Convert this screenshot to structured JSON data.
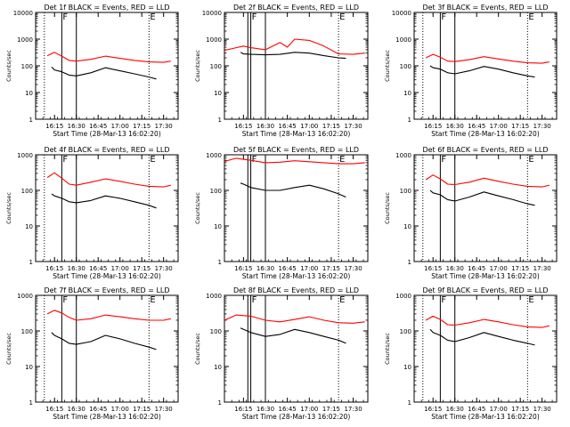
{
  "figure": {
    "xlabel": "Start Time (28-Mar-13 16:02:20)",
    "ylabel": "Counts/sec",
    "colors": {
      "events": "#000000",
      "lld": "#ff0000"
    }
  },
  "chart_data": [
    {
      "type": "line",
      "title": "Det 1f BLACK = Events, RED = LLD",
      "xlabel": "Start Time (28-Mar-13 16:02:20)",
      "ylabel": "Counts/sec",
      "x_ticks": [
        "16:15",
        "16:30",
        "16:45",
        "17:00",
        "17:15",
        "17:30"
      ],
      "y_ticks": [
        "1",
        "10",
        "100",
        "1000",
        "10000"
      ],
      "yscale": "log",
      "ylim": [
        1,
        10000
      ],
      "xlim": [
        "16:02",
        "17:40"
      ],
      "markers": [
        {
          "label": "F",
          "time": "16:20",
          "style": "solid"
        },
        {
          "label": "E",
          "time": "17:20",
          "style": "dotted"
        }
      ],
      "vlines": [
        {
          "time": "16:08",
          "style": "dotted"
        },
        {
          "time": "16:30",
          "style": "solid"
        }
      ],
      "series": [
        {
          "color": "#ff0000",
          "x": [
            "16:10",
            "16:15",
            "16:20",
            "16:25",
            "16:30",
            "16:40",
            "16:50",
            "17:00",
            "17:10",
            "17:20",
            "17:30",
            "17:35"
          ],
          "y": [
            240,
            320,
            230,
            160,
            150,
            175,
            230,
            190,
            160,
            140,
            135,
            150
          ]
        },
        {
          "color": "#000000",
          "x": [
            "16:13",
            "16:15",
            "16:20",
            "16:25",
            "16:30",
            "16:40",
            "16:50",
            "17:00",
            "17:10",
            "17:20",
            "17:25"
          ],
          "y": [
            90,
            70,
            60,
            45,
            42,
            55,
            85,
            65,
            50,
            38,
            32
          ]
        }
      ]
    },
    {
      "type": "line",
      "title": "Det 2f BLACK = Events, RED = LLD",
      "xlabel": "Start Time (28-Mar-13 16:02:20)",
      "ylabel": "Counts/sec",
      "x_ticks": [
        "16:15",
        "16:30",
        "16:45",
        "17:00",
        "17:15",
        "17:30"
      ],
      "y_ticks": [
        "1",
        "10",
        "100",
        "1000",
        "10000"
      ],
      "yscale": "log",
      "ylim": [
        1,
        10000
      ],
      "xlim": [
        "16:02",
        "17:40"
      ],
      "markers": [
        {
          "label": "F",
          "time": "16:20",
          "style": "solid"
        },
        {
          "label": "E",
          "time": "17:20",
          "style": "dotted"
        }
      ],
      "vlines": [
        {
          "time": "16:18",
          "style": "solid"
        },
        {
          "time": "16:30",
          "style": "solid"
        }
      ],
      "series": [
        {
          "color": "#ff0000",
          "x": [
            "16:02",
            "16:10",
            "16:15",
            "16:20",
            "16:30",
            "16:40",
            "16:45",
            "16:50",
            "17:00",
            "17:10",
            "17:20",
            "17:30",
            "17:38"
          ],
          "y": [
            380,
            480,
            550,
            480,
            400,
            750,
            500,
            1000,
            900,
            550,
            280,
            270,
            300
          ]
        },
        {
          "color": "#000000",
          "x": [
            "16:13",
            "16:15",
            "16:20",
            "16:30",
            "16:40",
            "16:50",
            "17:00",
            "17:10",
            "17:20",
            "17:25"
          ],
          "y": [
            320,
            280,
            270,
            260,
            270,
            320,
            300,
            240,
            200,
            190
          ]
        }
      ]
    },
    {
      "type": "line",
      "title": "Det 3f BLACK = Events, RED = LLD",
      "xlabel": "Start Time (28-Mar-13 16:02:20)",
      "ylabel": "Counts/sec",
      "x_ticks": [
        "16:15",
        "16:30",
        "16:45",
        "17:00",
        "17:15",
        "17:30"
      ],
      "y_ticks": [
        "1",
        "10",
        "100",
        "1000",
        "10000"
      ],
      "yscale": "log",
      "ylim": [
        1,
        10000
      ],
      "xlim": [
        "16:02",
        "17:40"
      ],
      "markers": [
        {
          "label": "F",
          "time": "16:20",
          "style": "solid"
        },
        {
          "label": "E",
          "time": "17:20",
          "style": "dotted"
        }
      ],
      "vlines": [
        {
          "time": "16:08",
          "style": "dotted"
        },
        {
          "time": "16:30",
          "style": "solid"
        }
      ],
      "series": [
        {
          "color": "#ff0000",
          "x": [
            "16:10",
            "16:15",
            "16:20",
            "16:25",
            "16:30",
            "16:40",
            "16:50",
            "17:00",
            "17:10",
            "17:20",
            "17:30",
            "17:35"
          ],
          "y": [
            200,
            270,
            210,
            150,
            145,
            170,
            220,
            180,
            150,
            130,
            125,
            140
          ]
        },
        {
          "color": "#000000",
          "x": [
            "16:13",
            "16:15",
            "16:20",
            "16:25",
            "16:30",
            "16:40",
            "16:50",
            "17:00",
            "17:10",
            "17:20",
            "17:25"
          ],
          "y": [
            100,
            85,
            75,
            55,
            50,
            65,
            95,
            75,
            55,
            42,
            38
          ]
        }
      ]
    },
    {
      "type": "line",
      "title": "Det 4f BLACK = Events, RED = LLD",
      "xlabel": "Start Time (28-Mar-13 16:02:20)",
      "ylabel": "Counts/sec",
      "x_ticks": [
        "16:15",
        "16:30",
        "16:45",
        "17:00",
        "17:15",
        "17:30"
      ],
      "y_ticks": [
        "1",
        "10",
        "100",
        "1000"
      ],
      "yscale": "log",
      "ylim": [
        1,
        1000
      ],
      "xlim": [
        "16:02",
        "17:40"
      ],
      "markers": [
        {
          "label": "F",
          "time": "16:20",
          "style": "solid"
        },
        {
          "label": "E",
          "time": "17:20",
          "style": "dotted"
        }
      ],
      "vlines": [
        {
          "time": "16:08",
          "style": "dotted"
        },
        {
          "time": "16:30",
          "style": "solid"
        }
      ],
      "series": [
        {
          "color": "#ff0000",
          "x": [
            "16:10",
            "16:15",
            "16:20",
            "16:25",
            "16:30",
            "16:40",
            "16:50",
            "17:00",
            "17:10",
            "17:20",
            "17:30",
            "17:35"
          ],
          "y": [
            230,
            310,
            220,
            150,
            140,
            170,
            210,
            180,
            150,
            130,
            125,
            140
          ]
        },
        {
          "color": "#000000",
          "x": [
            "16:13",
            "16:15",
            "16:20",
            "16:25",
            "16:30",
            "16:40",
            "16:50",
            "17:00",
            "17:10",
            "17:20",
            "17:25"
          ],
          "y": [
            80,
            70,
            60,
            48,
            45,
            52,
            70,
            60,
            48,
            38,
            32
          ]
        }
      ]
    },
    {
      "type": "line",
      "title": "Det 5f BLACK = Events, RED = LLD",
      "xlabel": "Start Time (28-Mar-13 16:02:20)",
      "ylabel": "Counts/sec",
      "x_ticks": [
        "16:15",
        "16:30",
        "16:45",
        "17:00",
        "17:15",
        "17:30"
      ],
      "y_ticks": [
        "1",
        "10",
        "100",
        "1000"
      ],
      "yscale": "log",
      "ylim": [
        1,
        1000
      ],
      "xlim": [
        "16:02",
        "17:40"
      ],
      "markers": [
        {
          "label": "F",
          "time": "16:20",
          "style": "solid"
        },
        {
          "label": "E",
          "time": "17:20",
          "style": "dotted"
        }
      ],
      "vlines": [
        {
          "time": "16:18",
          "style": "solid"
        },
        {
          "time": "16:30",
          "style": "solid"
        }
      ],
      "series": [
        {
          "color": "#ff0000",
          "x": [
            "16:02",
            "16:10",
            "16:20",
            "16:30",
            "16:40",
            "16:50",
            "17:00",
            "17:10",
            "17:20",
            "17:30",
            "17:38"
          ],
          "y": [
            650,
            800,
            700,
            600,
            620,
            680,
            640,
            600,
            560,
            560,
            600
          ]
        },
        {
          "color": "#000000",
          "x": [
            "16:13",
            "16:15",
            "16:20",
            "16:30",
            "16:40",
            "16:50",
            "17:00",
            "17:10",
            "17:20",
            "17:25"
          ],
          "y": [
            160,
            150,
            120,
            100,
            100,
            120,
            140,
            110,
            80,
            65
          ]
        }
      ]
    },
    {
      "type": "line",
      "title": "Det 6f BLACK = Events, RED = LLD",
      "xlabel": "Start Time (28-Mar-13 16:02:20)",
      "ylabel": "Counts/sec",
      "x_ticks": [
        "16:15",
        "16:30",
        "16:45",
        "17:00",
        "17:15",
        "17:30"
      ],
      "y_ticks": [
        "1",
        "10",
        "100",
        "1000"
      ],
      "yscale": "log",
      "ylim": [
        1,
        1000
      ],
      "xlim": [
        "16:02",
        "17:40"
      ],
      "markers": [
        {
          "label": "F",
          "time": "16:20",
          "style": "solid"
        },
        {
          "label": "E",
          "time": "17:20",
          "style": "dotted"
        }
      ],
      "vlines": [
        {
          "time": "16:08",
          "style": "dotted"
        },
        {
          "time": "16:30",
          "style": "solid"
        }
      ],
      "series": [
        {
          "color": "#ff0000",
          "x": [
            "16:10",
            "16:15",
            "16:20",
            "16:25",
            "16:30",
            "16:40",
            "16:50",
            "17:00",
            "17:10",
            "17:20",
            "17:30",
            "17:35"
          ],
          "y": [
            200,
            270,
            210,
            150,
            145,
            170,
            220,
            180,
            150,
            130,
            125,
            140
          ]
        },
        {
          "color": "#000000",
          "x": [
            "16:13",
            "16:15",
            "16:20",
            "16:25",
            "16:30",
            "16:40",
            "16:50",
            "17:00",
            "17:10",
            "17:20",
            "17:25"
          ],
          "y": [
            100,
            85,
            75,
            55,
            50,
            65,
            90,
            70,
            55,
            42,
            38
          ]
        }
      ]
    },
    {
      "type": "line",
      "title": "Det 7f BLACK = Events, RED = LLD",
      "xlabel": "Start Time (28-Mar-13 16:02:20)",
      "ylabel": "Counts/sec",
      "x_ticks": [
        "16:15",
        "16:30",
        "16:45",
        "17:00",
        "17:15",
        "17:30"
      ],
      "y_ticks": [
        "1",
        "10",
        "100",
        "1000"
      ],
      "yscale": "log",
      "ylim": [
        1,
        1000
      ],
      "xlim": [
        "16:02",
        "17:40"
      ],
      "markers": [
        {
          "label": "F",
          "time": "16:20",
          "style": "solid"
        },
        {
          "label": "E",
          "time": "17:20",
          "style": "dotted"
        }
      ],
      "vlines": [
        {
          "time": "16:08",
          "style": "dotted"
        },
        {
          "time": "16:30",
          "style": "solid"
        }
      ],
      "series": [
        {
          "color": "#ff0000",
          "x": [
            "16:10",
            "16:15",
            "16:20",
            "16:25",
            "16:30",
            "16:40",
            "16:50",
            "17:00",
            "17:10",
            "17:20",
            "17:30",
            "17:35"
          ],
          "y": [
            300,
            380,
            320,
            240,
            200,
            220,
            280,
            250,
            220,
            200,
            200,
            220
          ]
        },
        {
          "color": "#000000",
          "x": [
            "16:13",
            "16:15",
            "16:20",
            "16:25",
            "16:30",
            "16:40",
            "16:50",
            "17:00",
            "17:10",
            "17:20",
            "17:25"
          ],
          "y": [
            90,
            75,
            60,
            45,
            42,
            50,
            75,
            60,
            45,
            35,
            30
          ]
        }
      ]
    },
    {
      "type": "line",
      "title": "Det 8f BLACK = Events, RED = LLD",
      "xlabel": "Start Time (28-Mar-13 16:02:20)",
      "ylabel": "Counts/sec",
      "x_ticks": [
        "16:15",
        "16:30",
        "16:45",
        "17:00",
        "17:15",
        "17:30"
      ],
      "y_ticks": [
        "1",
        "10",
        "100",
        "1000"
      ],
      "yscale": "log",
      "ylim": [
        1,
        1000
      ],
      "xlim": [
        "16:02",
        "17:40"
      ],
      "markers": [
        {
          "label": "F",
          "time": "16:20",
          "style": "solid"
        },
        {
          "label": "E",
          "time": "17:20",
          "style": "dotted"
        }
      ],
      "vlines": [
        {
          "time": "16:18",
          "style": "solid"
        },
        {
          "time": "16:30",
          "style": "solid"
        }
      ],
      "series": [
        {
          "color": "#ff0000",
          "x": [
            "16:02",
            "16:10",
            "16:20",
            "16:30",
            "16:40",
            "16:50",
            "17:00",
            "17:10",
            "17:20",
            "17:30",
            "17:38"
          ],
          "y": [
            200,
            280,
            260,
            200,
            180,
            210,
            250,
            200,
            170,
            165,
            180
          ]
        },
        {
          "color": "#000000",
          "x": [
            "16:13",
            "16:15",
            "16:20",
            "16:30",
            "16:40",
            "16:50",
            "17:00",
            "17:10",
            "17:20",
            "17:25"
          ],
          "y": [
            120,
            110,
            90,
            70,
            80,
            110,
            90,
            70,
            55,
            45
          ]
        }
      ]
    },
    {
      "type": "line",
      "title": "Det 9f BLACK = Events, RED = LLD",
      "xlabel": "Start Time (28-Mar-13 16:02:20)",
      "ylabel": "Counts/sec",
      "x_ticks": [
        "16:15",
        "16:30",
        "16:45",
        "17:00",
        "17:15",
        "17:30"
      ],
      "y_ticks": [
        "1",
        "10",
        "100",
        "1000"
      ],
      "yscale": "log",
      "ylim": [
        1,
        1000
      ],
      "xlim": [
        "16:02",
        "17:40"
      ],
      "markers": [
        {
          "label": "F",
          "time": "16:20",
          "style": "solid"
        },
        {
          "label": "E",
          "time": "17:20",
          "style": "dotted"
        }
      ],
      "vlines": [
        {
          "time": "16:08",
          "style": "dotted"
        },
        {
          "time": "16:30",
          "style": "solid"
        }
      ],
      "series": [
        {
          "color": "#ff0000",
          "x": [
            "16:10",
            "16:15",
            "16:20",
            "16:25",
            "16:30",
            "16:40",
            "16:50",
            "17:00",
            "17:10",
            "17:20",
            "17:30",
            "17:35"
          ],
          "y": [
            200,
            260,
            210,
            150,
            145,
            170,
            210,
            180,
            150,
            130,
            125,
            140
          ]
        },
        {
          "color": "#000000",
          "x": [
            "16:13",
            "16:15",
            "16:20",
            "16:25",
            "16:30",
            "16:40",
            "16:50",
            "17:00",
            "17:10",
            "17:20",
            "17:25"
          ],
          "y": [
            110,
            90,
            75,
            55,
            50,
            65,
            90,
            70,
            55,
            45,
            40
          ]
        }
      ]
    }
  ]
}
